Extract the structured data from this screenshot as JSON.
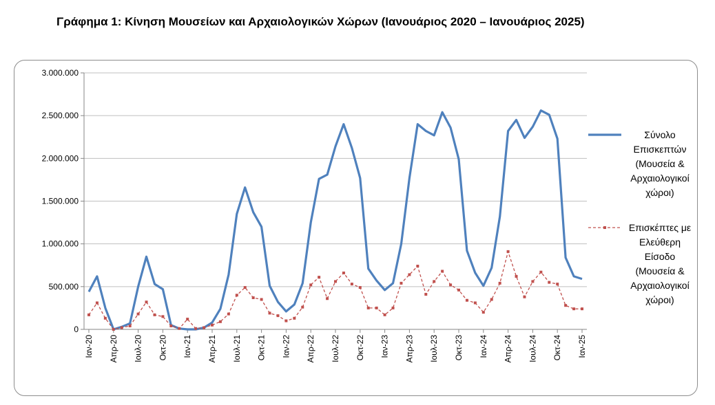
{
  "title": "Γράφημα 1: Κίνηση Μουσείων και Αρχαιολογικών Χώρων (Ιανουάριος 2020 – Ιανουάριος 2025)",
  "chart_data": {
    "type": "line",
    "ylim": [
      0,
      3000000
    ],
    "yticks": [
      0,
      500000,
      1000000,
      1500000,
      2000000,
      2500000,
      3000000
    ],
    "ytick_labels": [
      "0",
      "500.000",
      "1.000.000",
      "1.500.000",
      "2.000.000",
      "2.500.000",
      "3.000.000"
    ],
    "x_tick_labels": [
      "Ιαν-20",
      "Απρ-20",
      "Ιουλ-20",
      "Οκτ-20",
      "Ιαν-21",
      "Απρ-21",
      "Ιουλ-21",
      "Οκτ-21",
      "Ιαν-22",
      "Απρ-22",
      "Ιουλ-22",
      "Οκτ-22",
      "Ιαν-23",
      "Απρ-23",
      "Ιουλ-23",
      "Οκτ-23",
      "Ιαν-24",
      "Απρ-24",
      "Ιουλ-24",
      "Οκτ-24",
      "Ιαν-25"
    ],
    "x": [
      "Ιαν-20",
      "Φεβ-20",
      "Μαρ-20",
      "Απρ-20",
      "Μαϊ-20",
      "Ιουν-20",
      "Ιουλ-20",
      "Αυγ-20",
      "Σεπ-20",
      "Οκτ-20",
      "Νοε-20",
      "Δεκ-20",
      "Ιαν-21",
      "Φεβ-21",
      "Μαρ-21",
      "Απρ-21",
      "Μαϊ-21",
      "Ιουν-21",
      "Ιουλ-21",
      "Αυγ-21",
      "Σεπ-21",
      "Οκτ-21",
      "Νοε-21",
      "Δεκ-21",
      "Ιαν-22",
      "Φεβ-22",
      "Μαρ-22",
      "Απρ-22",
      "Μαϊ-22",
      "Ιουν-22",
      "Ιουλ-22",
      "Αυγ-22",
      "Σεπ-22",
      "Οκτ-22",
      "Νοε-22",
      "Δεκ-22",
      "Ιαν-23",
      "Φεβ-23",
      "Μαρ-23",
      "Απρ-23",
      "Μαϊ-23",
      "Ιουν-23",
      "Ιουλ-23",
      "Αυγ-23",
      "Σεπ-23",
      "Οκτ-23",
      "Νοε-23",
      "Δεκ-23",
      "Ιαν-24",
      "Φεβ-24",
      "Μαρ-24",
      "Απρ-24",
      "Μαϊ-24",
      "Ιουν-24",
      "Ιουλ-24",
      "Αυγ-24",
      "Σεπ-24",
      "Οκτ-24",
      "Νοε-24",
      "Δεκ-24",
      "Ιαν-25"
    ],
    "grid": "horizontal",
    "legend_position": "right",
    "series": [
      {
        "name": "Σύνολο Επισκεπτών (Μουσεία & Αρχαιολογικοί χώροι)",
        "name_lines": [
          "Σύνολο",
          "Επισκεπτών",
          "(Μουσεία &",
          "Αρχαιολογικοί",
          "χώροι)"
        ],
        "color": "#4f81bd",
        "style": "solid",
        "values": [
          440000,
          620000,
          250000,
          0,
          30000,
          70000,
          500000,
          850000,
          530000,
          470000,
          50000,
          10000,
          0,
          0,
          20000,
          80000,
          240000,
          640000,
          1350000,
          1660000,
          1370000,
          1200000,
          510000,
          320000,
          210000,
          290000,
          540000,
          1250000,
          1760000,
          1810000,
          2140000,
          2400000,
          2120000,
          1770000,
          710000,
          570000,
          460000,
          540000,
          1000000,
          1770000,
          2400000,
          2320000,
          2270000,
          2540000,
          2360000,
          1990000,
          920000,
          660000,
          510000,
          720000,
          1320000,
          2320000,
          2450000,
          2240000,
          2370000,
          2560000,
          2510000,
          2230000,
          840000,
          620000,
          590000
        ]
      },
      {
        "name": "Επισκέπτες με Ελεύθερη Είσοδο (Μουσεία & Αρχαιολογικοί χώροι)",
        "name_lines": [
          "Επισκέπτες με",
          "Ελεύθερη",
          "Είσοδο",
          "(Μουσεία &",
          "Αρχαιολογικοί",
          "χώροι)"
        ],
        "color": "#c0504d",
        "style": "dashed",
        "values": [
          170000,
          310000,
          130000,
          0,
          20000,
          40000,
          180000,
          320000,
          170000,
          150000,
          40000,
          10000,
          120000,
          10000,
          20000,
          50000,
          90000,
          180000,
          400000,
          490000,
          370000,
          350000,
          190000,
          160000,
          100000,
          130000,
          260000,
          520000,
          610000,
          360000,
          560000,
          660000,
          530000,
          490000,
          250000,
          250000,
          170000,
          250000,
          540000,
          640000,
          740000,
          410000,
          560000,
          680000,
          520000,
          460000,
          340000,
          310000,
          200000,
          350000,
          540000,
          910000,
          620000,
          380000,
          560000,
          670000,
          550000,
          530000,
          280000,
          240000,
          240000
        ]
      }
    ]
  }
}
